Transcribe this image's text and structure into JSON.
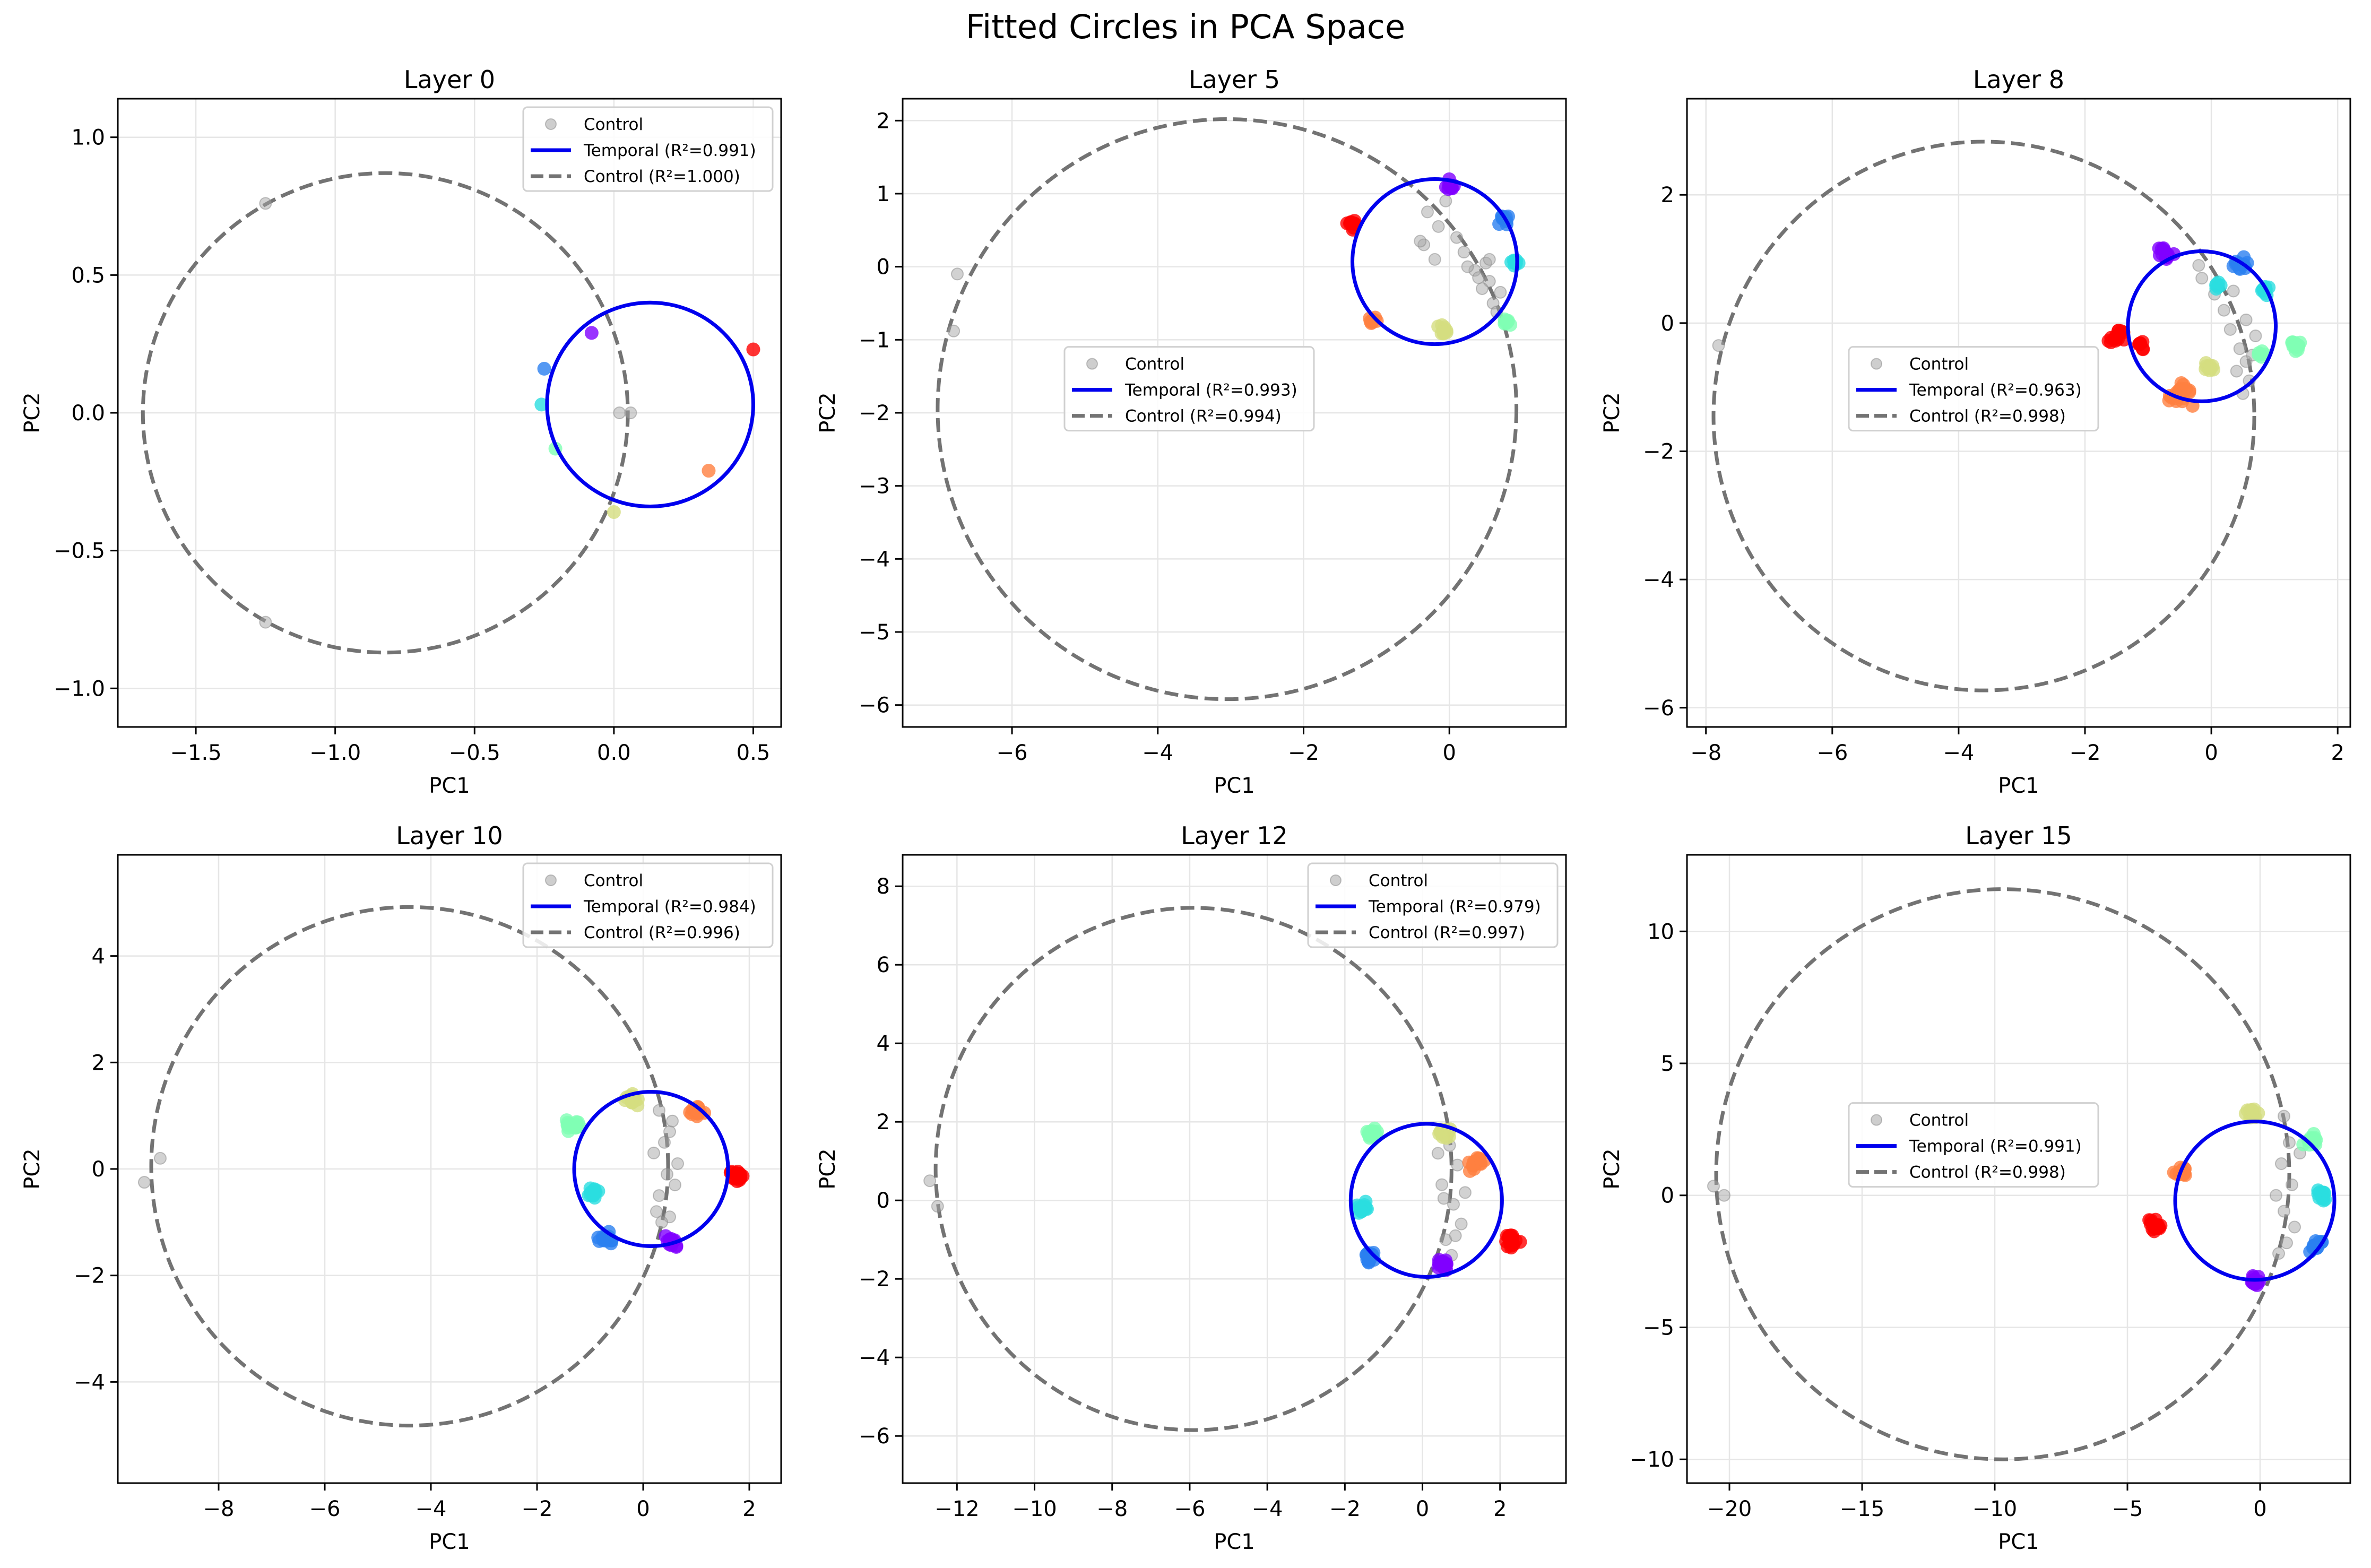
{
  "figure": {
    "title": "Fitted Circles in PCA Space"
  },
  "colors": {
    "temporal": "#0000ee",
    "control_circle": "#737373",
    "control_points": "#a6a6a6",
    "grid": "#e6e6e6",
    "palette": [
      "#8000ff",
      "#2a7ff0",
      "#2bdde0",
      "#80ffb4",
      "#d4dd80",
      "#ff7f40",
      "#ff0000"
    ]
  },
  "chart_data": [
    {
      "type": "scatter",
      "title": "Layer 0",
      "xlabel": "PC1",
      "ylabel": "PC2",
      "xlim": [
        -1.78,
        0.6
      ],
      "ylim": [
        -1.14,
        1.14
      ],
      "xticks": [
        -1.5,
        -1.0,
        -0.5,
        0.0,
        0.5
      ],
      "xtick_labels": [
        "−1.5",
        "−1.0",
        "−0.5",
        "0.0",
        "0.5"
      ],
      "yticks": [
        -1.0,
        -0.5,
        0.0,
        0.5,
        1.0
      ],
      "ytick_labels": [
        "−1.0",
        "−0.5",
        "0.0",
        "0.5",
        "1.0"
      ],
      "grid": true,
      "legend_position": "upper-right",
      "legend": [
        "Control",
        "Temporal (R²=0.991)",
        "Control (R²=1.000)"
      ],
      "temporal_circle": {
        "cx": 0.13,
        "cy": 0.03,
        "r": 0.37
      },
      "control_circle": {
        "cx": -0.82,
        "cy": 0.0,
        "r": 0.87
      },
      "temporal_clusters": [
        {
          "x": -0.08,
          "y": 0.29,
          "color": 0,
          "n": 1,
          "spread": 0
        },
        {
          "x": -0.25,
          "y": 0.16,
          "color": 1,
          "n": 1,
          "spread": 0
        },
        {
          "x": -0.26,
          "y": 0.03,
          "color": 2,
          "n": 1,
          "spread": 0
        },
        {
          "x": -0.21,
          "y": -0.13,
          "color": 3,
          "n": 1,
          "spread": 0
        },
        {
          "x": 0.0,
          "y": -0.36,
          "color": 4,
          "n": 1,
          "spread": 0
        },
        {
          "x": 0.34,
          "y": -0.21,
          "color": 5,
          "n": 1,
          "spread": 0
        },
        {
          "x": 0.5,
          "y": 0.23,
          "color": 6,
          "n": 1,
          "spread": 0
        }
      ],
      "control_points": [
        [
          -1.25,
          0.76
        ],
        [
          -1.25,
          -0.76
        ],
        [
          0.06,
          0.0
        ],
        [
          0.02,
          0.0
        ]
      ]
    },
    {
      "type": "scatter",
      "title": "Layer 5",
      "xlabel": "PC1",
      "ylabel": "PC2",
      "xlim": [
        -7.5,
        1.6
      ],
      "ylim": [
        -6.3,
        2.3
      ],
      "xticks": [
        -6,
        -4,
        -2,
        0
      ],
      "xtick_labels": [
        "−6",
        "−4",
        "−2",
        "0"
      ],
      "yticks": [
        -6,
        -5,
        -4,
        -3,
        -2,
        -1,
        0,
        1,
        2
      ],
      "ytick_labels": [
        "−6",
        "−5",
        "−4",
        "−3",
        "−2",
        "−1",
        "0",
        "1",
        "2"
      ],
      "grid": true,
      "legend_position": "center",
      "legend": [
        "Control",
        "Temporal (R²=0.993)",
        "Control (R²=0.994)"
      ],
      "temporal_circle": {
        "cx": -0.2,
        "cy": 0.07,
        "r": 1.13
      },
      "control_circle": {
        "cx": -3.05,
        "cy": -1.95,
        "r": 3.97
      },
      "temporal_clusters": [
        {
          "x": -1.35,
          "y": 0.6,
          "color": 6,
          "n": 10,
          "spread": 0.1
        },
        {
          "x": 0.0,
          "y": 1.13,
          "color": 0,
          "n": 10,
          "spread": 0.1
        },
        {
          "x": 0.75,
          "y": 0.65,
          "color": 1,
          "n": 10,
          "spread": 0.1
        },
        {
          "x": 0.88,
          "y": 0.07,
          "color": 2,
          "n": 10,
          "spread": 0.1
        },
        {
          "x": 0.8,
          "y": -0.75,
          "color": 3,
          "n": 8,
          "spread": 0.08
        },
        {
          "x": -0.08,
          "y": -0.88,
          "color": 4,
          "n": 10,
          "spread": 0.1
        },
        {
          "x": -1.05,
          "y": -0.72,
          "color": 5,
          "n": 10,
          "spread": 0.1
        }
      ],
      "control_points": [
        [
          -6.75,
          -0.1
        ],
        [
          -6.8,
          -0.88
        ],
        [
          -0.3,
          0.75
        ],
        [
          -0.15,
          0.55
        ],
        [
          -0.05,
          0.9
        ],
        [
          0.1,
          0.4
        ],
        [
          0.2,
          0.2
        ],
        [
          -0.35,
          0.3
        ],
        [
          -0.2,
          0.1
        ],
        [
          0.35,
          -0.05
        ],
        [
          0.5,
          0.05
        ],
        [
          0.55,
          -0.2
        ],
        [
          0.45,
          -0.3
        ],
        [
          0.6,
          -0.5
        ],
        [
          0.7,
          -0.35
        ],
        [
          0.65,
          -0.62
        ],
        [
          0.4,
          -0.15
        ],
        [
          0.25,
          0.0
        ],
        [
          -0.4,
          0.35
        ],
        [
          0.55,
          0.1
        ]
      ]
    },
    {
      "type": "scatter",
      "title": "Layer 8",
      "xlabel": "PC1",
      "ylabel": "PC2",
      "xlim": [
        -8.3,
        2.2
      ],
      "ylim": [
        -6.3,
        3.5
      ],
      "xticks": [
        -8,
        -6,
        -4,
        -2,
        0,
        2
      ],
      "xtick_labels": [
        "−8",
        "−6",
        "−4",
        "−2",
        "0",
        "2"
      ],
      "yticks": [
        -6,
        -4,
        -2,
        0,
        2
      ],
      "ytick_labels": [
        "−6",
        "−4",
        "−2",
        "0",
        "2"
      ],
      "grid": true,
      "legend_position": "center",
      "legend": [
        "Control",
        "Temporal (R²=0.963)",
        "Control (R²=0.998)"
      ],
      "temporal_circle": {
        "cx": -0.15,
        "cy": -0.05,
        "r": 1.17
      },
      "control_circle": {
        "cx": -3.6,
        "cy": -1.45,
        "r": 4.28
      },
      "temporal_clusters": [
        {
          "x": -1.5,
          "y": -0.2,
          "color": 6,
          "n": 14,
          "spread": 0.18
        },
        {
          "x": -1.1,
          "y": -0.35,
          "color": 6,
          "n": 8,
          "spread": 0.1
        },
        {
          "x": -0.75,
          "y": 1.05,
          "color": 0,
          "n": 14,
          "spread": 0.18
        },
        {
          "x": 0.45,
          "y": 0.95,
          "color": 1,
          "n": 14,
          "spread": 0.18
        },
        {
          "x": 0.1,
          "y": 0.6,
          "color": 2,
          "n": 6,
          "spread": 0.1
        },
        {
          "x": 0.85,
          "y": 0.5,
          "color": 2,
          "n": 8,
          "spread": 0.1
        },
        {
          "x": 1.35,
          "y": -0.35,
          "color": 3,
          "n": 14,
          "spread": 0.15
        },
        {
          "x": 0.8,
          "y": -0.5,
          "color": 3,
          "n": 6,
          "spread": 0.1
        },
        {
          "x": 0.0,
          "y": -0.7,
          "color": 4,
          "n": 10,
          "spread": 0.18
        },
        {
          "x": -0.5,
          "y": -1.15,
          "color": 5,
          "n": 20,
          "spread": 0.25
        }
      ],
      "control_points": [
        [
          -7.8,
          -0.35
        ],
        [
          -0.2,
          0.9
        ],
        [
          0.05,
          0.45
        ],
        [
          0.2,
          0.2
        ],
        [
          -0.15,
          0.7
        ],
        [
          0.3,
          -0.1
        ],
        [
          0.45,
          -0.4
        ],
        [
          0.55,
          -0.6
        ],
        [
          0.6,
          -0.9
        ],
        [
          0.4,
          -0.75
        ],
        [
          0.7,
          -0.2
        ],
        [
          0.55,
          0.05
        ],
        [
          0.35,
          0.5
        ],
        [
          0.5,
          -1.1
        ],
        [
          0.65,
          -0.5
        ]
      ]
    },
    {
      "type": "scatter",
      "title": "Layer 10",
      "xlabel": "PC1",
      "ylabel": "PC2",
      "xlim": [
        -9.9,
        2.6
      ],
      "ylim": [
        -5.9,
        5.9
      ],
      "xticks": [
        -8,
        -6,
        -4,
        -2,
        0,
        2
      ],
      "xtick_labels": [
        "−8",
        "−6",
        "−4",
        "−2",
        "0",
        "2"
      ],
      "yticks": [
        -4,
        -2,
        0,
        2,
        4
      ],
      "ytick_labels": [
        "−4",
        "−2",
        "0",
        "2",
        "4"
      ],
      "grid": true,
      "legend_position": "upper-right",
      "legend": [
        "Control",
        "Temporal (R²=0.984)",
        "Control (R²=0.996)"
      ],
      "temporal_circle": {
        "cx": 0.15,
        "cy": 0.0,
        "r": 1.45
      },
      "control_circle": {
        "cx": -4.4,
        "cy": 0.05,
        "r": 4.87
      },
      "temporal_clusters": [
        {
          "x": -1.35,
          "y": 0.8,
          "color": 3,
          "n": 16,
          "spread": 0.18
        },
        {
          "x": -0.2,
          "y": 1.3,
          "color": 4,
          "n": 16,
          "spread": 0.2
        },
        {
          "x": 1.0,
          "y": 1.1,
          "color": 5,
          "n": 16,
          "spread": 0.18
        },
        {
          "x": 1.75,
          "y": -0.1,
          "color": 6,
          "n": 18,
          "spread": 0.18
        },
        {
          "x": 0.5,
          "y": -1.35,
          "color": 0,
          "n": 14,
          "spread": 0.18
        },
        {
          "x": -0.7,
          "y": -1.3,
          "color": 1,
          "n": 14,
          "spread": 0.18
        },
        {
          "x": -0.95,
          "y": -0.45,
          "color": 2,
          "n": 14,
          "spread": 0.18
        }
      ],
      "control_points": [
        [
          -9.4,
          -0.25
        ],
        [
          -9.1,
          0.2
        ],
        [
          0.3,
          1.1
        ],
        [
          0.5,
          0.7
        ],
        [
          0.2,
          0.3
        ],
        [
          0.45,
          -0.1
        ],
        [
          0.3,
          -0.5
        ],
        [
          0.5,
          -0.9
        ],
        [
          0.6,
          -0.3
        ],
        [
          0.25,
          -0.8
        ],
        [
          0.4,
          0.5
        ],
        [
          0.65,
          0.1
        ],
        [
          0.35,
          -1.0
        ],
        [
          0.55,
          0.9
        ]
      ]
    },
    {
      "type": "scatter",
      "title": "Layer 12",
      "xlabel": "PC1",
      "ylabel": "PC2",
      "xlim": [
        -13.4,
        3.7
      ],
      "ylim": [
        -7.2,
        8.8
      ],
      "xticks": [
        -12,
        -10,
        -8,
        -6,
        -4,
        -2,
        0,
        2
      ],
      "xtick_labels": [
        "−12",
        "−10",
        "−8",
        "−6",
        "−4",
        "−2",
        "0",
        "2"
      ],
      "yticks": [
        -6,
        -4,
        -2,
        0,
        2,
        4,
        6,
        8
      ],
      "ytick_labels": [
        "−6",
        "−4",
        "−2",
        "0",
        "2",
        "4",
        "6",
        "8"
      ],
      "grid": true,
      "legend_position": "upper-right",
      "legend": [
        "Control",
        "Temporal (R²=0.979)",
        "Control (R²=0.997)"
      ],
      "temporal_circle": {
        "cx": 0.1,
        "cy": 0.0,
        "r": 1.95
      },
      "control_circle": {
        "cx": -5.9,
        "cy": 0.8,
        "r": 6.65
      },
      "temporal_clusters": [
        {
          "x": -1.3,
          "y": 1.65,
          "color": 3,
          "n": 16,
          "spread": 0.22
        },
        {
          "x": 0.6,
          "y": 1.7,
          "color": 4,
          "n": 14,
          "spread": 0.25
        },
        {
          "x": 1.4,
          "y": 0.95,
          "color": 5,
          "n": 16,
          "spread": 0.25
        },
        {
          "x": 2.3,
          "y": -1.0,
          "color": 6,
          "n": 18,
          "spread": 0.28
        },
        {
          "x": 0.5,
          "y": -1.65,
          "color": 0,
          "n": 14,
          "spread": 0.22
        },
        {
          "x": -1.35,
          "y": -1.45,
          "color": 1,
          "n": 14,
          "spread": 0.22
        },
        {
          "x": -1.55,
          "y": -0.2,
          "color": 2,
          "n": 14,
          "spread": 0.22
        }
      ],
      "control_points": [
        [
          -12.7,
          0.5
        ],
        [
          -12.5,
          -0.15
        ],
        [
          0.7,
          1.4
        ],
        [
          0.9,
          0.9
        ],
        [
          0.5,
          0.4
        ],
        [
          0.8,
          -0.1
        ],
        [
          1.0,
          -0.6
        ],
        [
          0.6,
          -1.0
        ],
        [
          0.75,
          -1.4
        ],
        [
          1.1,
          0.2
        ],
        [
          0.55,
          0.05
        ],
        [
          0.85,
          -0.9
        ],
        [
          0.4,
          1.2
        ]
      ]
    },
    {
      "type": "scatter",
      "title": "Layer 15",
      "xlabel": "PC1",
      "ylabel": "PC2",
      "xlim": [
        -21.6,
        3.4
      ],
      "ylim": [
        -10.9,
        12.9
      ],
      "xticks": [
        -20,
        -15,
        -10,
        -5,
        0
      ],
      "xtick_labels": [
        "−20",
        "−15",
        "−10",
        "−5",
        "0"
      ],
      "yticks": [
        -10,
        -5,
        0,
        5,
        10
      ],
      "ytick_labels": [
        "−10",
        "−5",
        "0",
        "5",
        "10"
      ],
      "grid": true,
      "legend_position": "center",
      "legend": [
        "Control",
        "Temporal (R²=0.991)",
        "Control (R²=0.998)"
      ],
      "temporal_circle": {
        "cx": -0.2,
        "cy": -0.2,
        "r": 3.0
      },
      "control_circle": {
        "cx": -9.7,
        "cy": 0.8,
        "r": 10.8
      },
      "temporal_clusters": [
        {
          "x": -4.0,
          "y": -1.1,
          "color": 6,
          "n": 18,
          "spread": 0.4
        },
        {
          "x": -3.0,
          "y": 0.9,
          "color": 5,
          "n": 16,
          "spread": 0.35
        },
        {
          "x": -0.3,
          "y": 3.1,
          "color": 4,
          "n": 14,
          "spread": 0.4
        },
        {
          "x": 1.9,
          "y": 2.1,
          "color": 3,
          "n": 14,
          "spread": 0.35
        },
        {
          "x": 2.3,
          "y": 0.0,
          "color": 2,
          "n": 14,
          "spread": 0.35
        },
        {
          "x": 2.1,
          "y": -1.9,
          "color": 1,
          "n": 14,
          "spread": 0.35
        },
        {
          "x": -0.2,
          "y": -3.2,
          "color": 0,
          "n": 14,
          "spread": 0.35
        }
      ],
      "control_points": [
        [
          -20.6,
          0.35
        ],
        [
          -20.2,
          0.0
        ],
        [
          0.9,
          3.0
        ],
        [
          1.1,
          2.0
        ],
        [
          0.8,
          1.2
        ],
        [
          1.2,
          0.4
        ],
        [
          0.9,
          -0.6
        ],
        [
          1.3,
          -1.2
        ],
        [
          1.0,
          -1.8
        ],
        [
          0.7,
          -2.2
        ],
        [
          1.5,
          1.6
        ],
        [
          0.6,
          0.0
        ]
      ]
    }
  ]
}
